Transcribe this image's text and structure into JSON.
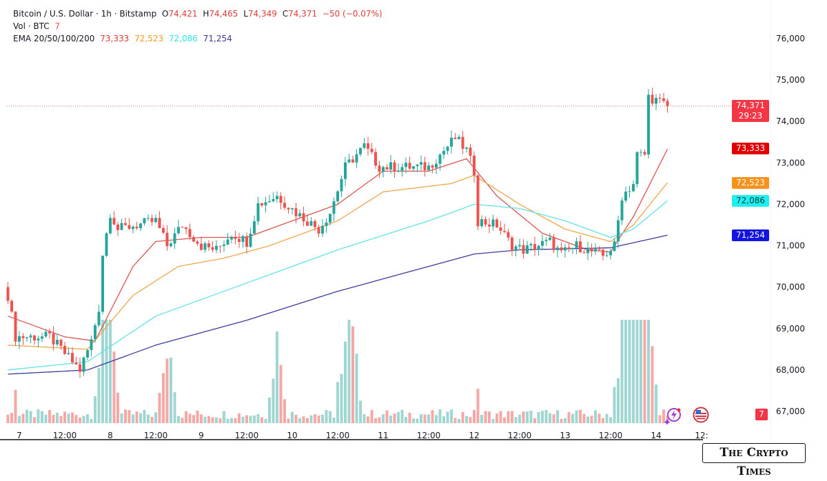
{
  "header": {
    "symbol": "Bitcoin / U.S. Dollar · 1h · Bitstamp",
    "open_label": "O",
    "open": "74,421",
    "high_label": "H",
    "high": "74,465",
    "low_label": "L",
    "low": "74,349",
    "close_label": "C",
    "close": "74,371",
    "change": "−50 (−0.07%)",
    "vol_label": "Vol · BTC",
    "vol": "7",
    "ema_label": "EMA 20/50/100/200",
    "ema20": "73,333",
    "ema50": "72,523",
    "ema100": "72,086",
    "ema200": "71,254"
  },
  "price_tags": {
    "last": "74,371",
    "countdown": "29:23",
    "ema20": "73,333",
    "ema50": "72,523",
    "ema100": "72,086",
    "ema200": "71,254",
    "volume": "7"
  },
  "colors": {
    "up": "#26a69a",
    "down": "#ef5350",
    "ema20": "#e03a3a",
    "ema50": "#f59a23",
    "ema100": "#2ee6e6",
    "ema200": "#1f1fd6",
    "text": "#131722"
  },
  "watermark": "The Crypto Times",
  "icons": [
    "lightning-sparkle-icon",
    "us-flag-icon"
  ],
  "chart_data": {
    "type": "candlestick",
    "interval": "1h",
    "ylim": [
      67000,
      76000
    ],
    "y_ticks": [
      "76,000",
      "75,000",
      "74,000",
      "73,000",
      "72,000",
      "71,000",
      "70,000",
      "69,000",
      "68,000",
      "67,000"
    ],
    "x_ticks": [
      "7",
      "12:00",
      "8",
      "12:00",
      "9",
      "12:00",
      "10",
      "12:00",
      "11",
      "12:00",
      "12",
      "12:00",
      "13",
      "12:00",
      "14",
      "12:"
    ],
    "x_range": [
      "6 21:00",
      "14 03:00"
    ],
    "close_path": [
      [
        "6 21:00",
        69800
      ],
      [
        "6 23:00",
        68800
      ],
      [
        "7 08:00",
        68800
      ],
      [
        "7 13:00",
        68300
      ],
      [
        "7 16:00",
        68000
      ],
      [
        "7 19:00",
        68700
      ],
      [
        "7 21:00",
        69500
      ],
      [
        "7 22:00",
        70800
      ],
      [
        "8 00:00",
        71800
      ],
      [
        "8 02:00",
        71400
      ],
      [
        "8 12:00",
        71600
      ],
      [
        "8 15:00",
        71000
      ],
      [
        "8 19:00",
        71500
      ],
      [
        "9 00:00",
        71000
      ],
      [
        "9 04:00",
        70900
      ],
      [
        "9 08:00",
        71300
      ],
      [
        "9 12:00",
        71100
      ],
      [
        "9 15:00",
        72000
      ],
      [
        "9 20:00",
        72200
      ],
      [
        "10 01:00",
        71800
      ],
      [
        "10 07:00",
        71400
      ],
      [
        "10 10:00",
        71800
      ],
      [
        "10 14:00",
        72900
      ],
      [
        "10 19:00",
        73400
      ],
      [
        "10 23:00",
        72900
      ],
      [
        "11 12:00",
        72900
      ],
      [
        "11 19:00",
        73600
      ],
      [
        "11 22:00",
        73300
      ],
      [
        "12 00:00",
        72800
      ],
      [
        "12 01:00",
        71600
      ],
      [
        "12 06:00",
        71500
      ],
      [
        "12 10:00",
        71000
      ],
      [
        "12 13:00",
        70900
      ],
      [
        "12 20:00",
        71100
      ],
      [
        "12 23:00",
        70800
      ],
      [
        "13 03:00",
        71000
      ],
      [
        "13 10:00",
        70750
      ],
      [
        "13 13:00",
        71000
      ],
      [
        "13 15:00",
        72200
      ],
      [
        "13 18:00",
        72500
      ],
      [
        "13 19:00",
        73200
      ],
      [
        "13 21:00",
        73200
      ],
      [
        "13 22:00",
        74600
      ],
      [
        "14 03:00",
        74371
      ]
    ],
    "ema": [
      {
        "name": "EMA 20",
        "color": "#d9534f",
        "points": [
          [
            "6 21:00",
            69300
          ],
          [
            "7 12:00",
            68800
          ],
          [
            "7 20:00",
            68700
          ],
          [
            "8 06:00",
            70500
          ],
          [
            "8 12:00",
            71100
          ],
          [
            "9 00:00",
            71200
          ],
          [
            "9 12:00",
            71200
          ],
          [
            "10 00:00",
            71600
          ],
          [
            "10 12:00",
            72000
          ],
          [
            "11 00:00",
            72800
          ],
          [
            "11 12:00",
            72800
          ],
          [
            "11 22:00",
            73100
          ],
          [
            "12 06:00",
            72200
          ],
          [
            "12 18:00",
            71300
          ],
          [
            "13 06:00",
            70900
          ],
          [
            "13 12:00",
            70850
          ],
          [
            "13 18:00",
            71700
          ],
          [
            "14 03:00",
            73333
          ]
        ]
      },
      {
        "name": "EMA 50",
        "color": "#f0a64a",
        "points": [
          [
            "6 21:00",
            68600
          ],
          [
            "7 18:00",
            68500
          ],
          [
            "8 06:00",
            69800
          ],
          [
            "8 18:00",
            70500
          ],
          [
            "9 06:00",
            70700
          ],
          [
            "9 18:00",
            71000
          ],
          [
            "10 12:00",
            71600
          ],
          [
            "11 00:00",
            72300
          ],
          [
            "11 18:00",
            72500
          ],
          [
            "12 00:00",
            72700
          ],
          [
            "12 12:00",
            72000
          ],
          [
            "13 00:00",
            71400
          ],
          [
            "13 12:00",
            71100
          ],
          [
            "13 18:00",
            71500
          ],
          [
            "14 03:00",
            72523
          ]
        ]
      },
      {
        "name": "EMA 100",
        "color": "#5fe3ea",
        "points": [
          [
            "6 21:00",
            68000
          ],
          [
            "7 18:00",
            68200
          ],
          [
            "8 12:00",
            69300
          ],
          [
            "9 12:00",
            70100
          ],
          [
            "10 12:00",
            70900
          ],
          [
            "11 12:00",
            71600
          ],
          [
            "12 00:00",
            72000
          ],
          [
            "12 12:00",
            71900
          ],
          [
            "13 00:00",
            71600
          ],
          [
            "13 12:00",
            71200
          ],
          [
            "13 18:00",
            71400
          ],
          [
            "14 03:00",
            72086
          ]
        ]
      },
      {
        "name": "EMA 200",
        "color": "#3a3a9e",
        "points": [
          [
            "6 21:00",
            67900
          ],
          [
            "7 18:00",
            68000
          ],
          [
            "8 12:00",
            68600
          ],
          [
            "9 12:00",
            69200
          ],
          [
            "10 12:00",
            69900
          ],
          [
            "11 12:00",
            70500
          ],
          [
            "12 00:00",
            70800
          ],
          [
            "12 12:00",
            70900
          ],
          [
            "13 12:00",
            70950
          ],
          [
            "14 03:00",
            71254
          ]
        ]
      }
    ],
    "volume_spikes": [
      "7 22:00",
      "8 00:00",
      "8 15:00",
      "9 20:00",
      "10 14:00",
      "10 16:00",
      "13 15:00",
      "13 17:00",
      "13 19:00",
      "13 21:00",
      "13 22:00"
    ]
  }
}
